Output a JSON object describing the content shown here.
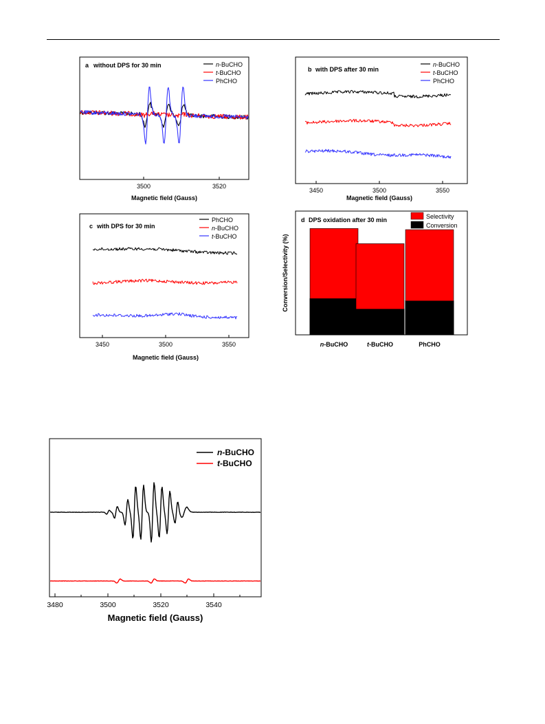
{
  "page": {
    "rule": true
  },
  "panels": [
    {
      "id": "a",
      "letter": "a",
      "title": "without DPS for 30 min",
      "xlabel": "Magnetic field (Gauss)",
      "xticks": [
        "3500",
        "3520"
      ],
      "legend": [
        {
          "prefix": "n",
          "suffix": "-BuCHO",
          "color": "#000000"
        },
        {
          "prefix": "t",
          "suffix": "-BuCHO",
          "color": "#ff0000"
        },
        {
          "prefix": "",
          "suffix": "PhCHO",
          "color": "#3333ff"
        }
      ]
    },
    {
      "id": "b",
      "letter": "b",
      "title": "with DPS after 30 min",
      "xlabel": "Magnetic field (Gauss)",
      "xticks": [
        "3450",
        "3500",
        "3550"
      ],
      "legend": [
        {
          "prefix": "n",
          "suffix": "-BuCHO",
          "color": "#000000"
        },
        {
          "prefix": "t",
          "suffix": "-BuCHO",
          "color": "#ff0000"
        },
        {
          "prefix": "",
          "suffix": "PhCHO",
          "color": "#3333ff"
        }
      ]
    },
    {
      "id": "c",
      "letter": "c",
      "title": "with DPS for 30 min",
      "xlabel": "Magnetic field (Gauss)",
      "xticks": [
        "3450",
        "3500",
        "3550"
      ],
      "legend": [
        {
          "prefix": "",
          "suffix": "PhCHO",
          "color": "#000000"
        },
        {
          "prefix": "n",
          "suffix": "-BuCHO",
          "color": "#ff0000"
        },
        {
          "prefix": "t",
          "suffix": "-BuCHO",
          "color": "#3333ff"
        }
      ]
    },
    {
      "id": "d",
      "letter": "d",
      "title": "DPS oxidation after 30 min",
      "ylabel": "Conversion/Selectivity (%)",
      "legend": [
        {
          "prefix": "",
          "suffix": "Selectivity",
          "color": "#ff0000"
        },
        {
          "prefix": "",
          "suffix": "Conversion",
          "color": "#000000"
        }
      ]
    },
    {
      "id": "e",
      "xlabel": "Magnetic field (Gauss)",
      "xticks": [
        "3480",
        "3500",
        "3520",
        "3540"
      ],
      "legend": [
        {
          "prefix": "n",
          "suffix": "-BuCHO",
          "color": "#000000"
        },
        {
          "prefix": "t",
          "suffix": "-BuCHO",
          "color": "#ff0000"
        }
      ]
    }
  ],
  "chart_data": [
    {
      "panel": "a",
      "type": "line",
      "title": "without DPS for 30 min",
      "xlabel": "Magnetic field (Gauss)",
      "xlim": [
        3485,
        3530
      ],
      "series": [
        {
          "name": "n-BuCHO",
          "signal": "weak triplet",
          "line_positions": [
            3503,
            3508,
            3512
          ]
        },
        {
          "name": "t-BuCHO",
          "signal": "near-flat with small features"
        },
        {
          "name": "PhCHO",
          "signal": "strong triplet",
          "line_positions": [
            3503,
            3508,
            3512
          ]
        }
      ]
    },
    {
      "panel": "b",
      "type": "line",
      "title": "with DPS after 30 min",
      "xlabel": "Magnetic field (Gauss)",
      "xlim": [
        3440,
        3560
      ],
      "series": [
        {
          "name": "n-BuCHO",
          "signal": "flat noise"
        },
        {
          "name": "t-BuCHO",
          "signal": "flat noise"
        },
        {
          "name": "PhCHO",
          "signal": "flat noise"
        }
      ]
    },
    {
      "panel": "c",
      "type": "line",
      "title": "with DPS for 30 min",
      "xlabel": "Magnetic field (Gauss)",
      "xlim": [
        3435,
        3565
      ],
      "series": [
        {
          "name": "PhCHO",
          "signal": "flat noise"
        },
        {
          "name": "n-BuCHO",
          "signal": "flat noise"
        },
        {
          "name": "t-BuCHO",
          "signal": "flat noise"
        }
      ]
    },
    {
      "panel": "d",
      "type": "bar",
      "title": "DPS oxidation after 30 min",
      "ylabel": "Conversion/Selectivity (%)",
      "categories": [
        "n-BuCHO",
        "t-BuCHO",
        "PhCHO"
      ],
      "series": [
        {
          "name": "Conversion",
          "values": [
            31,
            22,
            29
          ]
        },
        {
          "name": "Selectivity",
          "values": [
            60,
            56,
            61
          ]
        }
      ]
    },
    {
      "panel": "e",
      "type": "line",
      "xlabel": "Magnetic field (Gauss)",
      "xlim": [
        3470,
        3550
      ],
      "series": [
        {
          "name": "n-BuCHO",
          "signal": "multi-line spectrum",
          "line_positions": [
            3495,
            3499,
            3502,
            3505,
            3509,
            3512,
            3515,
            3518
          ]
        },
        {
          "name": "t-BuCHO",
          "signal": "weak features",
          "line_positions": [
            3496,
            3509,
            3522
          ]
        }
      ]
    }
  ]
}
